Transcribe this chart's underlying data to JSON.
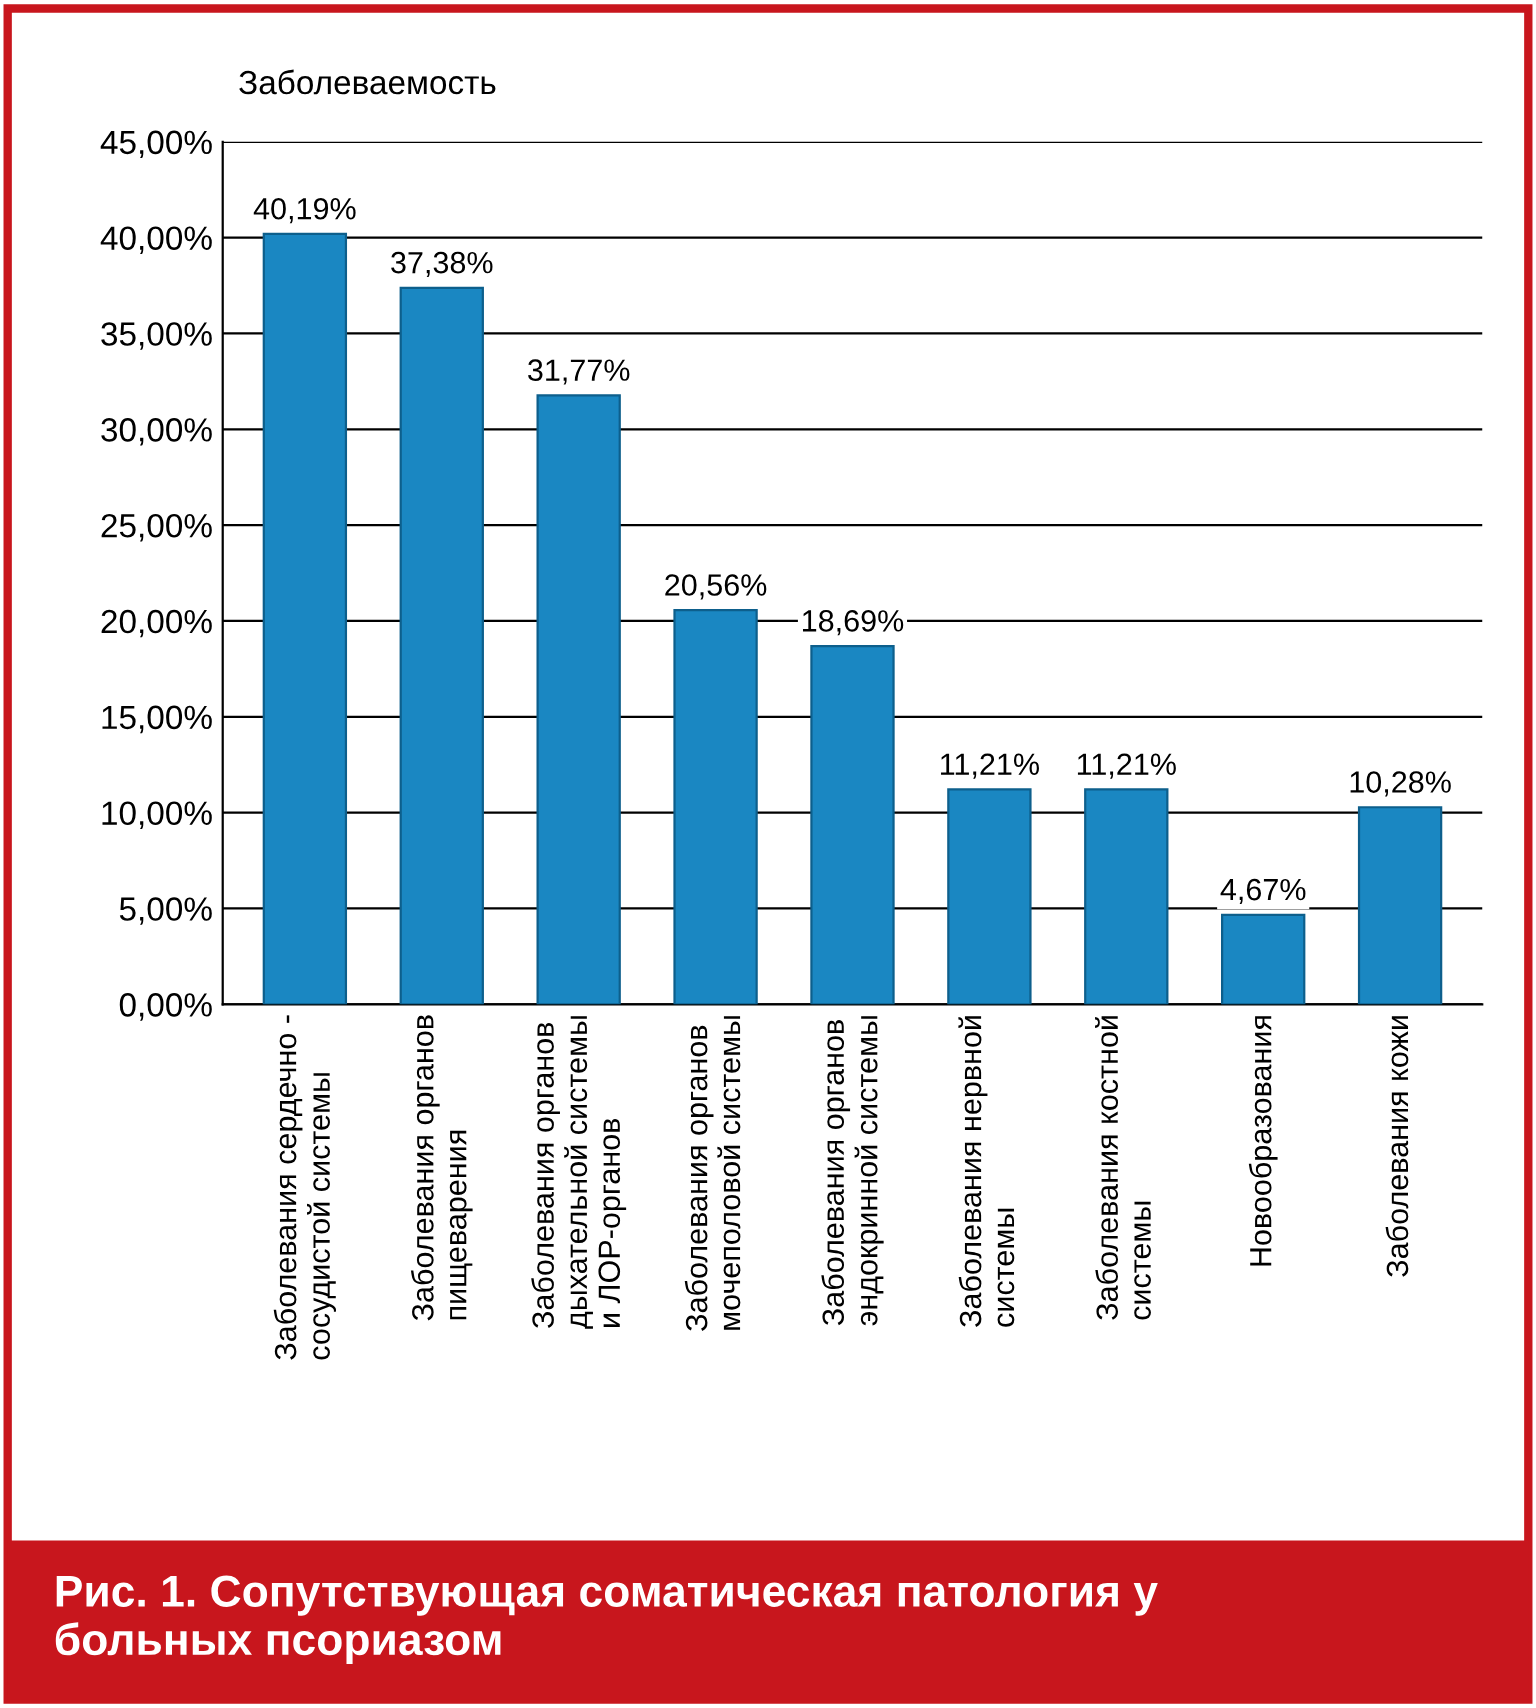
{
  "chart_data": {
    "type": "bar",
    "title": "Рис. 1. Сопутствующая соматическая патология у больных псориазом",
    "ylabel": "Заболеваемость",
    "categories": [
      "Заболевания сердечно -\nсосудистой системы",
      "Заболевания органов\nпищеварения",
      "Заболевания органов\nдыхательной системы\nи ЛОР-органов",
      "Заболевания органов\nмочеполовой системы",
      "Заболевания органов\nэндокринной системы",
      "Заболевания нервной\nсистемы",
      "Заболевания костной\nсистемы",
      "Новообразования",
      "Заболевания кожи"
    ],
    "values": [
      40.19,
      37.38,
      31.77,
      20.56,
      18.69,
      11.21,
      11.21,
      4.67,
      10.28
    ],
    "value_labels": [
      "40,19%",
      "37,38%",
      "31,77%",
      "20,56%",
      "18,69%",
      "11,21%",
      "11,21%",
      "4,67%",
      "10,28%"
    ],
    "color": "#1a87c2",
    "ylim": [
      0,
      45
    ],
    "yticks": [
      {
        "value": 0,
        "label": "0,00%"
      },
      {
        "value": 5,
        "label": "5,00%"
      },
      {
        "value": 10,
        "label": "10,00%"
      },
      {
        "value": 15,
        "label": "15,00%"
      },
      {
        "value": 20,
        "label": "20,00%"
      },
      {
        "value": 25,
        "label": "25,00%"
      },
      {
        "value": 30,
        "label": "30,00%"
      },
      {
        "value": 35,
        "label": "35,00%"
      },
      {
        "value": 40,
        "label": "40,00%"
      },
      {
        "value": 45,
        "label": "45,00%"
      }
    ],
    "grid": "y"
  }
}
